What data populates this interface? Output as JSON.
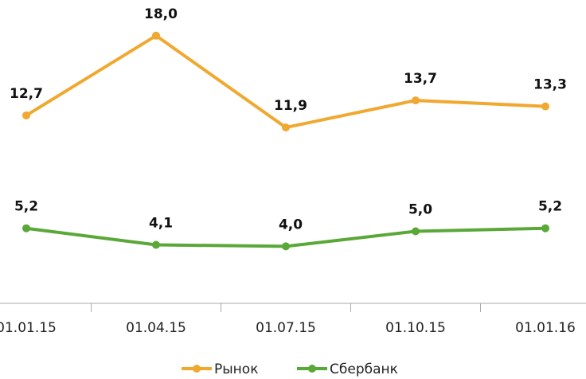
{
  "chart_data": {
    "type": "line",
    "categories": [
      "01.01.15",
      "01.04.15",
      "01.07.15",
      "01.10.15",
      "01.01.16"
    ],
    "series": [
      {
        "name": "Рынок",
        "color": "#f0a830",
        "values": [
          12.7,
          18.0,
          11.9,
          13.7,
          13.3
        ],
        "value_labels": [
          "12,7",
          "18,0",
          "11,9",
          "13,7",
          "13,3"
        ]
      },
      {
        "name": "Сбербанк",
        "color": "#5aa838",
        "values": [
          5.2,
          4.1,
          4.0,
          5.0,
          5.2
        ],
        "value_labels": [
          "5,2",
          "4,1",
          "4,0",
          "5,0",
          "5,2"
        ]
      }
    ],
    "ylim": [
      0,
      20
    ]
  }
}
